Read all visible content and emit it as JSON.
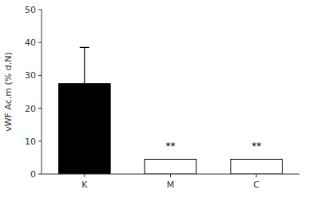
{
  "chart_data": {
    "type": "bar",
    "ylabel": "vWF Ac.m (% d.N)",
    "categories": [
      "K",
      "M",
      "C"
    ],
    "values": [
      27.5,
      4.5,
      4.5
    ],
    "errors_up": [
      11.0,
      0.0,
      0.0
    ],
    "errors_down": [
      10.0,
      0.0,
      0.0
    ],
    "colors": [
      "#000000",
      "#ffffff",
      "#ffffff"
    ],
    "ylim": [
      0,
      50
    ],
    "yticks": [
      0,
      10,
      20,
      30,
      40,
      50
    ],
    "annotations": [
      {
        "text": "**",
        "category": "M",
        "y": 8.5
      },
      {
        "text": "**",
        "category": "C",
        "y": 8.5
      }
    ],
    "grid": false
  }
}
